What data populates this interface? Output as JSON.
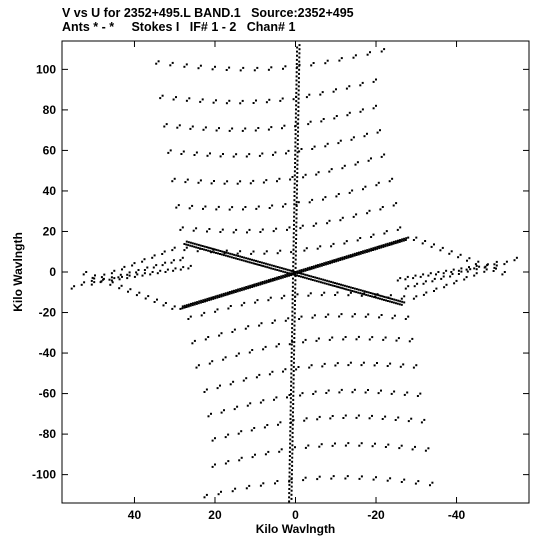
{
  "header": {
    "line1": "V vs U for 2352+495.L BAND.1   Source:2352+495",
    "line2": "Ants * - *     Stokes I   IF# 1 - 2   Chan# 1"
  },
  "chart_data": {
    "type": "scatter",
    "xlabel": "Kilo Wavlngth",
    "ylabel": "Kilo Wavlngth",
    "xlim": [
      58,
      -58
    ],
    "ylim": [
      -114,
      114
    ],
    "x_reversed": true,
    "x_ticks": [
      40,
      20,
      0,
      -20,
      -40
    ],
    "x_tick_labels": [
      "40",
      "20",
      "0",
      "-20",
      "-40"
    ],
    "y_ticks": [
      100,
      80,
      60,
      40,
      20,
      0,
      -20,
      -40,
      -60,
      -80,
      -100
    ],
    "y_tick_labels": [
      "100",
      "80",
      "60",
      "40",
      "20",
      "0",
      "-20",
      "-40",
      "-60",
      "-80",
      "-100"
    ],
    "grid": false,
    "description_of_points": "uv-coverage dot tracks: radial spokes from origin forming a six-pointed star plus symmetric arc tracks",
    "spokes": [
      {
        "end": [
          -1,
          112
        ]
      },
      {
        "end": [
          1,
          -112
        ]
      },
      {
        "end": [
          -28,
          17
        ]
      },
      {
        "end": [
          28,
          -17
        ]
      },
      {
        "end": [
          27,
          15
        ]
      },
      {
        "end": [
          -27,
          -15
        ]
      }
    ],
    "tracks_upper": [
      {
        "from": [
          34,
          104
        ],
        "to": [
          -22,
          110
        ]
      },
      {
        "from": [
          33,
          87
        ],
        "to": [
          -20,
          95
        ]
      },
      {
        "from": [
          32,
          73
        ],
        "to": [
          -20,
          82
        ]
      },
      {
        "from": [
          31,
          60
        ],
        "to": [
          -21,
          70
        ]
      },
      {
        "from": [
          30,
          46
        ],
        "to": [
          -22,
          58
        ]
      },
      {
        "from": [
          29,
          33
        ],
        "to": [
          -24,
          46
        ]
      },
      {
        "from": [
          28,
          22
        ],
        "to": [
          -25,
          34
        ]
      },
      {
        "from": [
          27,
          12
        ],
        "to": [
          -26,
          22
        ]
      }
    ],
    "tracks_lower": [
      {
        "from": [
          -34,
          -104
        ],
        "to": [
          22,
          -110
        ]
      },
      {
        "from": [
          -33,
          -87
        ],
        "to": [
          20,
          -95
        ]
      },
      {
        "from": [
          -32,
          -73
        ],
        "to": [
          20,
          -82
        ]
      },
      {
        "from": [
          -31,
          -60
        ],
        "to": [
          21,
          -70
        ]
      },
      {
        "from": [
          -30,
          -46
        ],
        "to": [
          22,
          -58
        ]
      },
      {
        "from": [
          -29,
          -33
        ],
        "to": [
          24,
          -46
        ]
      },
      {
        "from": [
          -28,
          -22
        ],
        "to": [
          25,
          -34
        ]
      },
      {
        "from": [
          -27,
          -12
        ],
        "to": [
          26,
          -22
        ]
      }
    ],
    "tracks_left": [
      {
        "from": [
          55,
          -7
        ],
        "to": [
          30,
          12
        ]
      },
      {
        "from": [
          50,
          -5
        ],
        "to": [
          28,
          7
        ]
      },
      {
        "from": [
          45,
          -3
        ],
        "to": [
          26,
          3
        ]
      },
      {
        "from": [
          52,
          0
        ],
        "to": [
          30,
          -17
        ]
      }
    ],
    "tracks_right": [
      {
        "from": [
          -55,
          7
        ],
        "to": [
          -30,
          -12
        ]
      },
      {
        "from": [
          -50,
          5
        ],
        "to": [
          -28,
          -7
        ]
      },
      {
        "from": [
          -45,
          3
        ],
        "to": [
          -26,
          -3
        ]
      },
      {
        "from": [
          -52,
          0
        ],
        "to": [
          -30,
          17
        ]
      }
    ]
  }
}
